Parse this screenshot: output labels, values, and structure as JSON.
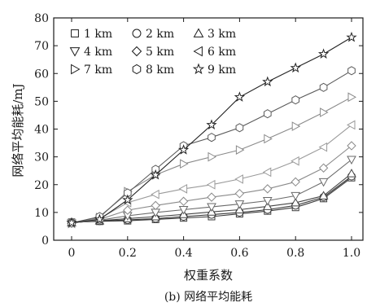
{
  "caption": "(b) 网络平均能耗",
  "chart_data": {
    "type": "line",
    "xlabel": "权重系数",
    "ylabel": "网络平均能耗/mJ",
    "xlim": [
      0,
      1.0
    ],
    "ylim": [
      0,
      80
    ],
    "xticks": [
      "0",
      "0.2",
      "0.4",
      "0.6",
      "0.8",
      "1.0"
    ],
    "yticks": [
      "0",
      "10",
      "20",
      "30",
      "40",
      "50",
      "60",
      "70",
      "80"
    ],
    "grid": false,
    "legend_position": "top-left",
    "x": [
      0,
      0.1,
      0.2,
      0.3,
      0.4,
      0.5,
      0.6,
      0.7,
      0.8,
      0.9,
      1.0
    ],
    "series": [
      {
        "name": "1 km",
        "marker": "square",
        "values": [
          6.5,
          6.8,
          7.0,
          7.5,
          8.0,
          8.5,
          9.5,
          10.5,
          11.8,
          15.0,
          22.5
        ]
      },
      {
        "name": "2 km",
        "marker": "circle",
        "values": [
          6.4,
          6.9,
          7.3,
          7.8,
          8.5,
          9.2,
          10.0,
          11.0,
          12.5,
          15.5,
          23.0
        ]
      },
      {
        "name": "3 km",
        "marker": "triangle-up",
        "values": [
          6.3,
          7.0,
          7.8,
          8.5,
          9.3,
          10.2,
          11.0,
          12.2,
          13.5,
          16.0,
          24.0
        ]
      },
      {
        "name": "4 km",
        "marker": "triangle-down",
        "values": [
          6.2,
          7.2,
          8.8,
          10.0,
          11.0,
          12.0,
          13.0,
          14.2,
          16.0,
          21.0,
          29.0
        ]
      },
      {
        "name": "5 km",
        "marker": "diamond",
        "values": [
          6.1,
          7.5,
          10.8,
          12.5,
          14.0,
          15.5,
          16.8,
          18.5,
          21.0,
          26.0,
          34.0
        ]
      },
      {
        "name": "6 km",
        "marker": "triangle-left",
        "values": [
          6.0,
          7.8,
          13.5,
          16.5,
          18.5,
          20.0,
          22.0,
          24.5,
          28.5,
          33.5,
          41.5
        ]
      },
      {
        "name": "7 km",
        "marker": "triangle-right",
        "values": [
          6.0,
          8.2,
          17.5,
          23.5,
          27.5,
          30.0,
          32.5,
          36.5,
          41.0,
          46.0,
          51.5
        ]
      },
      {
        "name": "8 km",
        "marker": "hexagon",
        "values": [
          6.2,
          8.5,
          17.0,
          25.5,
          34.0,
          37.0,
          40.5,
          45.5,
          50.5,
          55.0,
          61.0
        ]
      },
      {
        "name": "9 km",
        "marker": "star",
        "values": [
          6.3,
          7.5,
          14.5,
          23.5,
          32.5,
          41.5,
          51.5,
          57.0,
          62.0,
          67.0,
          73.0
        ]
      }
    ]
  }
}
